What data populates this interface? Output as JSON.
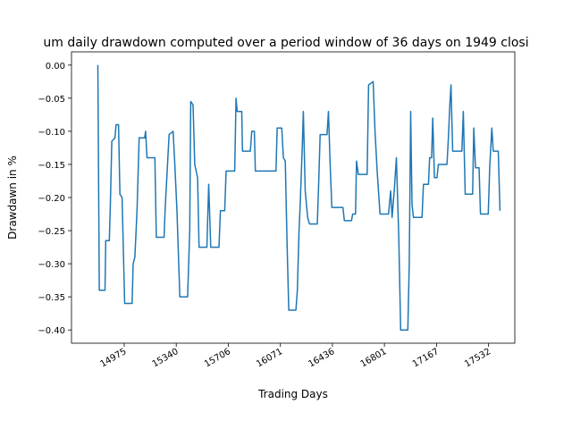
{
  "chart_data": {
    "type": "line",
    "title": "um daily drawdown computed over a period window of 36 days on 1949 closi",
    "xlabel": "Trading Days",
    "ylabel": "Drawdawn in %",
    "xlim": [
      14605,
      17716
    ],
    "ylim": [
      -0.42,
      0.02
    ],
    "xticks": [
      {
        "value": 14975,
        "label": "14975"
      },
      {
        "value": 15340,
        "label": "15340"
      },
      {
        "value": 15706,
        "label": "15706"
      },
      {
        "value": 16071,
        "label": "16071"
      },
      {
        "value": 16436,
        "label": "16436"
      },
      {
        "value": 16801,
        "label": "16801"
      },
      {
        "value": 17167,
        "label": "17167"
      },
      {
        "value": 17532,
        "label": "17532"
      }
    ],
    "yticks": [
      {
        "value": 0.0,
        "label": "0.00"
      },
      {
        "value": -0.05,
        "label": "−0.05"
      },
      {
        "value": -0.1,
        "label": "−0.10"
      },
      {
        "value": -0.15,
        "label": "−0.15"
      },
      {
        "value": -0.2,
        "label": "−0.20"
      },
      {
        "value": -0.25,
        "label": "−0.25"
      },
      {
        "value": -0.3,
        "label": "−0.30"
      },
      {
        "value": -0.35,
        "label": "−0.35"
      },
      {
        "value": -0.4,
        "label": "−0.40"
      }
    ],
    "grid": false,
    "series": [
      {
        "color": "#1f77b4",
        "points": [
          [
            14790,
            0.0
          ],
          [
            14800,
            -0.34
          ],
          [
            14840,
            -0.34
          ],
          [
            14845,
            -0.265
          ],
          [
            14870,
            -0.265
          ],
          [
            14878,
            -0.21
          ],
          [
            14888,
            -0.115
          ],
          [
            14910,
            -0.11
          ],
          [
            14918,
            -0.09
          ],
          [
            14935,
            -0.09
          ],
          [
            14945,
            -0.195
          ],
          [
            14960,
            -0.2
          ],
          [
            14978,
            -0.36
          ],
          [
            15030,
            -0.36
          ],
          [
            15038,
            -0.3
          ],
          [
            15050,
            -0.29
          ],
          [
            15065,
            -0.22
          ],
          [
            15080,
            -0.11
          ],
          [
            15118,
            -0.11
          ],
          [
            15125,
            -0.1
          ],
          [
            15135,
            -0.14
          ],
          [
            15190,
            -0.14
          ],
          [
            15200,
            -0.26
          ],
          [
            15255,
            -0.26
          ],
          [
            15262,
            -0.22
          ],
          [
            15290,
            -0.105
          ],
          [
            15318,
            -0.1
          ],
          [
            15330,
            -0.15
          ],
          [
            15345,
            -0.22
          ],
          [
            15365,
            -0.35
          ],
          [
            15420,
            -0.35
          ],
          [
            15435,
            -0.25
          ],
          [
            15442,
            -0.055
          ],
          [
            15458,
            -0.06
          ],
          [
            15470,
            -0.15
          ],
          [
            15490,
            -0.17
          ],
          [
            15500,
            -0.275
          ],
          [
            15555,
            -0.275
          ],
          [
            15568,
            -0.18
          ],
          [
            15582,
            -0.275
          ],
          [
            15640,
            -0.275
          ],
          [
            15650,
            -0.22
          ],
          [
            15680,
            -0.22
          ],
          [
            15690,
            -0.16
          ],
          [
            15750,
            -0.16
          ],
          [
            15760,
            -0.05
          ],
          [
            15768,
            -0.07
          ],
          [
            15800,
            -0.07
          ],
          [
            15805,
            -0.13
          ],
          [
            15860,
            -0.13
          ],
          [
            15870,
            -0.1
          ],
          [
            15888,
            -0.1
          ],
          [
            15895,
            -0.16
          ],
          [
            16040,
            -0.16
          ],
          [
            16048,
            -0.095
          ],
          [
            16080,
            -0.095
          ],
          [
            16092,
            -0.14
          ],
          [
            16105,
            -0.145
          ],
          [
            16118,
            -0.27
          ],
          [
            16130,
            -0.37
          ],
          [
            16180,
            -0.37
          ],
          [
            16190,
            -0.34
          ],
          [
            16202,
            -0.25
          ],
          [
            16210,
            -0.21
          ],
          [
            16225,
            -0.12
          ],
          [
            16232,
            -0.07
          ],
          [
            16245,
            -0.19
          ],
          [
            16262,
            -0.23
          ],
          [
            16275,
            -0.24
          ],
          [
            16330,
            -0.24
          ],
          [
            16338,
            -0.19
          ],
          [
            16350,
            -0.105
          ],
          [
            16398,
            -0.105
          ],
          [
            16408,
            -0.07
          ],
          [
            16420,
            -0.15
          ],
          [
            16432,
            -0.215
          ],
          [
            16510,
            -0.215
          ],
          [
            16520,
            -0.235
          ],
          [
            16570,
            -0.235
          ],
          [
            16578,
            -0.225
          ],
          [
            16598,
            -0.225
          ],
          [
            16605,
            -0.145
          ],
          [
            16618,
            -0.165
          ],
          [
            16680,
            -0.165
          ],
          [
            16690,
            -0.03
          ],
          [
            16722,
            -0.025
          ],
          [
            16735,
            -0.1
          ],
          [
            16750,
            -0.16
          ],
          [
            16770,
            -0.225
          ],
          [
            16830,
            -0.225
          ],
          [
            16845,
            -0.19
          ],
          [
            16855,
            -0.23
          ],
          [
            16870,
            -0.19
          ],
          [
            16885,
            -0.14
          ],
          [
            16902,
            -0.26
          ],
          [
            16915,
            -0.4
          ],
          [
            16965,
            -0.4
          ],
          [
            16975,
            -0.3
          ],
          [
            16985,
            -0.07
          ],
          [
            16995,
            -0.21
          ],
          [
            17005,
            -0.23
          ],
          [
            17065,
            -0.23
          ],
          [
            17075,
            -0.18
          ],
          [
            17110,
            -0.18
          ],
          [
            17118,
            -0.14
          ],
          [
            17132,
            -0.14
          ],
          [
            17140,
            -0.08
          ],
          [
            17152,
            -0.17
          ],
          [
            17170,
            -0.17
          ],
          [
            17180,
            -0.15
          ],
          [
            17240,
            -0.15
          ],
          [
            17250,
            -0.11
          ],
          [
            17260,
            -0.06
          ],
          [
            17268,
            -0.03
          ],
          [
            17280,
            -0.13
          ],
          [
            17345,
            -0.13
          ],
          [
            17355,
            -0.07
          ],
          [
            17368,
            -0.195
          ],
          [
            17420,
            -0.195
          ],
          [
            17428,
            -0.095
          ],
          [
            17440,
            -0.155
          ],
          [
            17465,
            -0.155
          ],
          [
            17475,
            -0.225
          ],
          [
            17530,
            -0.225
          ],
          [
            17540,
            -0.155
          ],
          [
            17555,
            -0.095
          ],
          [
            17565,
            -0.13
          ],
          [
            17600,
            -0.13
          ],
          [
            17612,
            -0.22
          ]
        ]
      }
    ]
  }
}
